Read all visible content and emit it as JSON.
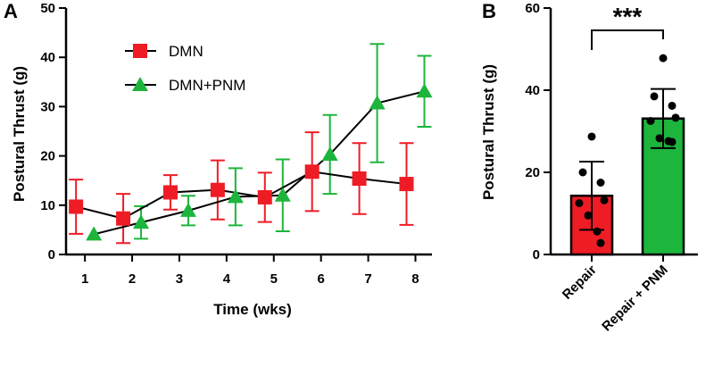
{
  "panels": {
    "a": {
      "letter": "A"
    },
    "b": {
      "letter": "B"
    }
  },
  "chart_data": [
    {
      "type": "line",
      "panel": "A",
      "xlabel": "Time (wks)",
      "ylabel": "Postural Thrust (g)",
      "ylim": [
        0,
        50
      ],
      "yticks": [
        0,
        10,
        20,
        30,
        40,
        50
      ],
      "x": [
        1,
        2,
        3,
        4,
        5,
        6,
        7,
        8
      ],
      "xlim": [
        0.6,
        8.35
      ],
      "legend_position": "top-left",
      "series": [
        {
          "name": "DMN",
          "marker": "square",
          "color": "#ee1c25",
          "values": [
            9.7,
            7.3,
            12.6,
            13.1,
            11.6,
            16.8,
            15.4,
            14.3
          ],
          "errors": [
            5.5,
            5.0,
            3.5,
            6.0,
            5.0,
            8.0,
            7.2,
            8.3
          ]
        },
        {
          "name": "DMN+PNM",
          "marker": "triangle",
          "color": "#1db53c",
          "values": [
            4.1,
            6.5,
            8.9,
            11.7,
            12.0,
            20.3,
            30.7,
            33.1
          ],
          "errors": [
            0,
            3.3,
            3.0,
            5.8,
            7.3,
            8.0,
            12.0,
            7.2
          ]
        }
      ]
    },
    {
      "type": "bar",
      "panel": "B",
      "xlabel": "",
      "ylabel": "Postural Thrust (g)",
      "ylim": [
        0,
        60
      ],
      "yticks": [
        0,
        20,
        40,
        60
      ],
      "categories": [
        "Repair",
        "Repair + PNM"
      ],
      "values": [
        14.3,
        33.1
      ],
      "errors": [
        8.3,
        7.2
      ],
      "colors": [
        "#ee1c25",
        "#1db53c"
      ],
      "points": [
        [
          28.7,
          20.0,
          17.5,
          12.5,
          13.2,
          9.5,
          5.6,
          2.8
        ],
        [
          47.8,
          38.5,
          36.2,
          32.5,
          33.3,
          28.3,
          27.6,
          27.4
        ]
      ],
      "significance": "***"
    }
  ]
}
